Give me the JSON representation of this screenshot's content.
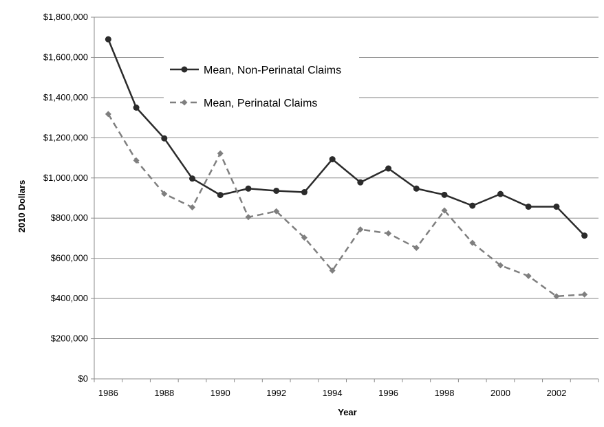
{
  "chart_data": {
    "type": "line",
    "title": "",
    "xlabel": "Year",
    "ylabel": "2010 Dollars",
    "x": [
      1986,
      1987,
      1988,
      1989,
      1990,
      1991,
      1992,
      1993,
      1994,
      1995,
      1996,
      1997,
      1998,
      1999,
      2000,
      2001,
      2002,
      2003
    ],
    "x_ticks": [
      "1986",
      "1988",
      "1990",
      "1992",
      "1994",
      "1996",
      "1998",
      "2000",
      "2002"
    ],
    "x_tick_values": [
      1986,
      1988,
      1990,
      1992,
      1994,
      1996,
      1998,
      2000,
      2002
    ],
    "y_ticks": [
      "$0",
      "$200,000",
      "$400,000",
      "$600,000",
      "$800,000",
      "$1,000,000",
      "$1,200,000",
      "$1,400,000",
      "$1,600,000",
      "$1,800,000"
    ],
    "y_tick_values": [
      0,
      200000,
      400000,
      600000,
      800000,
      1000000,
      1200000,
      1400000,
      1600000,
      1800000
    ],
    "ylim": [
      0,
      1800000
    ],
    "xlim": [
      1985.5,
      2003.5
    ],
    "grid": "horizontal",
    "legend_position": "top-left inside plot",
    "series": [
      {
        "name": "Mean, Non-Perinatal Claims",
        "style": "solid",
        "marker": "circle",
        "color": "#2b2b2b",
        "values": [
          1690000,
          1350000,
          1197000,
          997000,
          915000,
          947000,
          936000,
          929000,
          1093000,
          978000,
          1047000,
          947000,
          916000,
          862000,
          920000,
          857000,
          857000,
          713000
        ]
      },
      {
        "name": "Mean, Perinatal Claims",
        "style": "dashed",
        "marker": "diamond",
        "color": "#7f7f7f",
        "values": [
          1318000,
          1087000,
          921000,
          854000,
          1122000,
          805000,
          834000,
          703000,
          539000,
          744000,
          724000,
          652000,
          838000,
          677000,
          565000,
          512000,
          411000,
          420000
        ]
      }
    ]
  }
}
